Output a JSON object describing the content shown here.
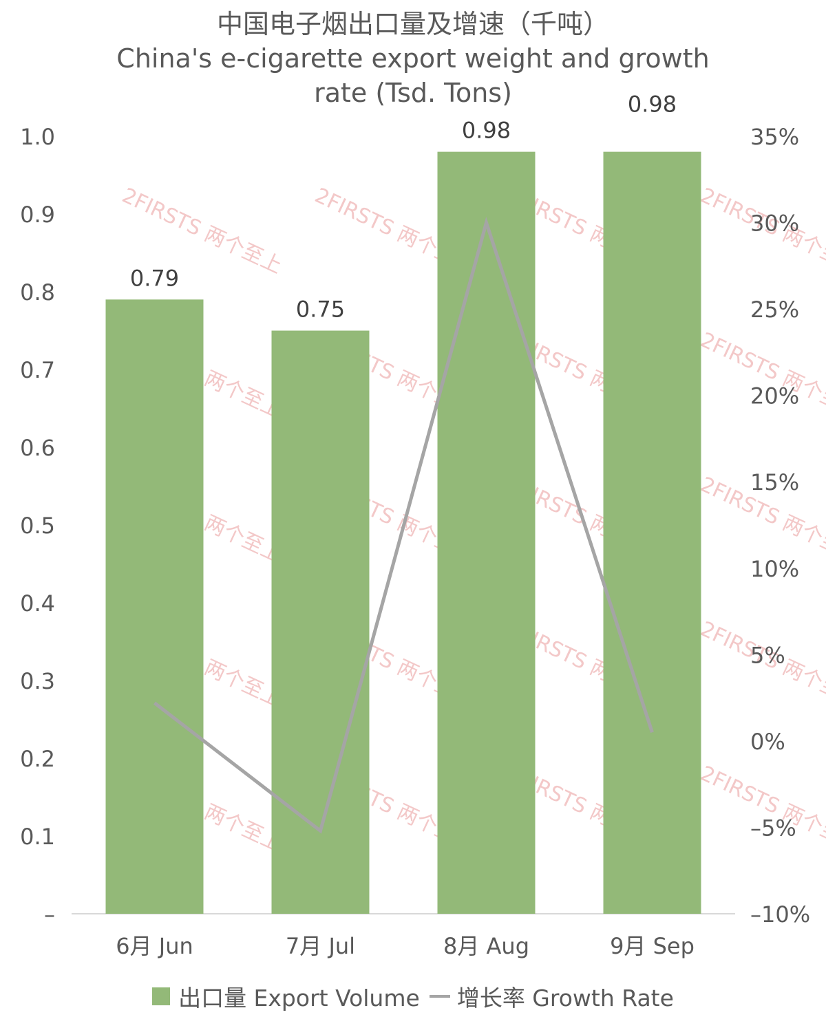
{
  "chart_data": {
    "type": "bar",
    "title": "中国电子烟出口量及增速（千吨）",
    "subtitle": "China's e-cigarette export weight and growth rate (Tsd. Tons)",
    "categories": [
      "6月 Jun",
      "7月 Jul",
      "8月 Aug",
      "9月 Sep"
    ],
    "series": [
      {
        "name": "出口量 Export Volume",
        "type": "bar",
        "axis": "left",
        "color": "#93b978",
        "values": [
          0.79,
          0.75,
          0.98,
          0.98
        ],
        "labels": [
          "0.79",
          "0.75",
          "0.98",
          "0.98"
        ]
      },
      {
        "name": "增长率 Growth Rate",
        "type": "line",
        "axis": "right",
        "color": "#a5a5a5",
        "values": [
          2.2,
          -5.2,
          30.0,
          0.5
        ]
      }
    ],
    "left_axis": {
      "ylim": [
        0,
        1.0
      ],
      "ticks": [
        "–",
        "0.1",
        "0.2",
        "0.3",
        "0.4",
        "0.5",
        "0.6",
        "0.7",
        "0.8",
        "0.9",
        "1.0"
      ]
    },
    "right_axis": {
      "ylim": [
        -10,
        35
      ],
      "ticks": [
        "–10%",
        "–5%",
        "0%",
        "5%",
        "10%",
        "15%",
        "20%",
        "25%",
        "30%",
        "35%"
      ]
    },
    "grid": false,
    "legend": "bottom",
    "watermark": "2FIRSTS 两个至上"
  }
}
